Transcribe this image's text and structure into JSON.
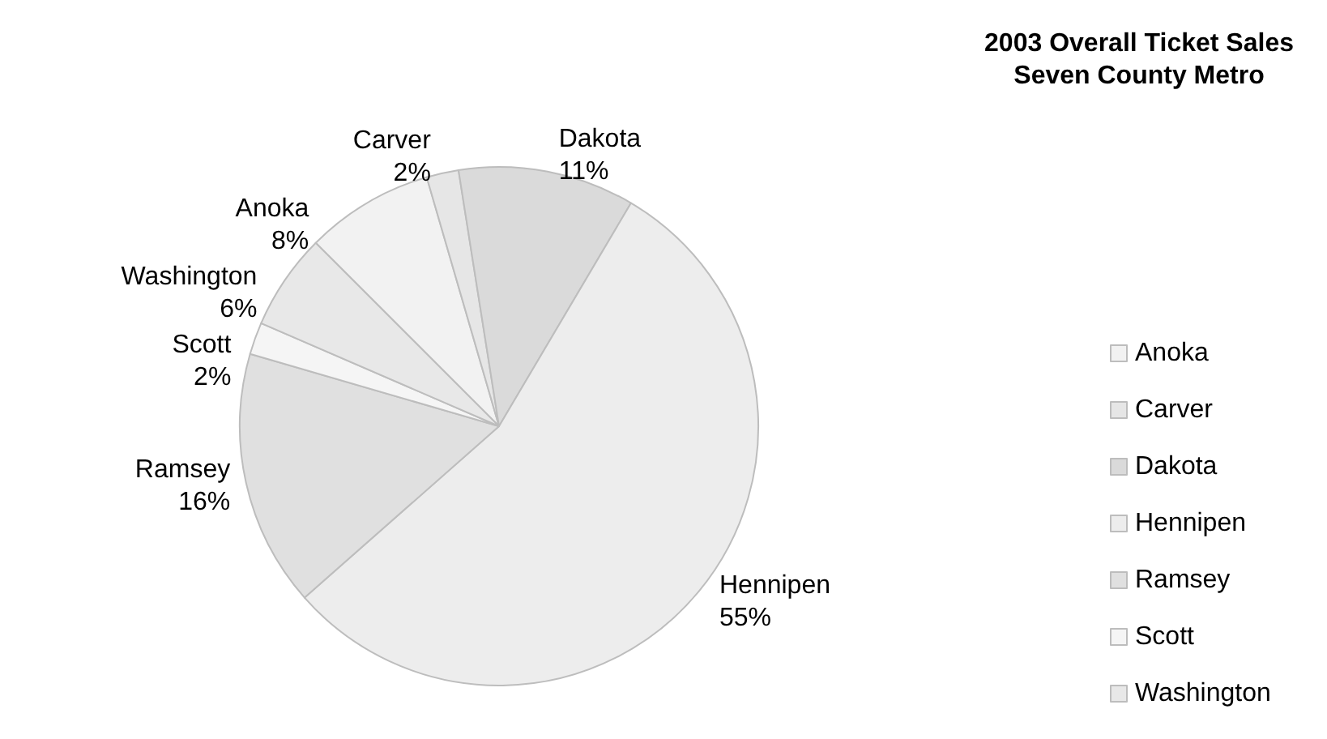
{
  "chart_data": {
    "type": "pie",
    "title": "2003 Overall Ticket Sales",
    "subtitle": "Seven County Metro",
    "categories": [
      "Anoka",
      "Carver",
      "Dakota",
      "Hennipen",
      "Ramsey",
      "Scott",
      "Washington"
    ],
    "values": [
      8,
      2,
      11,
      55,
      16,
      2,
      6
    ],
    "value_labels": [
      "8%",
      "2%",
      "11%",
      "55%",
      "16%",
      "2%",
      "6%"
    ],
    "colors": [
      "#f2f2f2",
      "#e6e6e6",
      "#dadada",
      "#ededed",
      "#e0e0e0",
      "#f5f5f5",
      "#e8e8e8"
    ],
    "legend": "right"
  }
}
